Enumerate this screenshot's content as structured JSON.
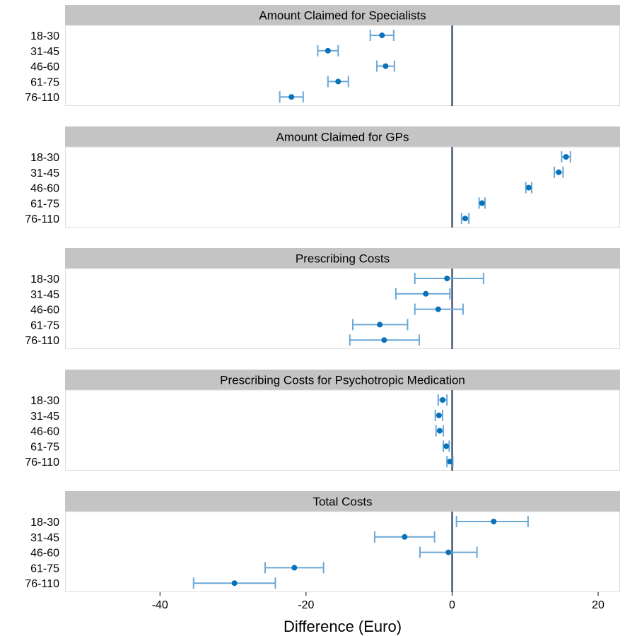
{
  "chart_data": {
    "type": "scatter",
    "subtype": "forest-plot-faceted",
    "xlabel": "Difference (Euro)",
    "xlim": [
      -53,
      23
    ],
    "xticks": [
      -40,
      -20,
      0,
      20
    ],
    "xtick_labels": [
      "-40",
      "-20",
      "0",
      "20"
    ],
    "reference_line_x": 0,
    "categories": [
      "18-30",
      "31-45",
      "46-60",
      "61-75",
      "76-110"
    ],
    "colors": {
      "point": "#0a72b8",
      "errorbar": "#6aa8d8",
      "reference_line": "#1a2f4f",
      "strip_bg": "#c4c4c4",
      "panel_border": "#dcdcdc"
    },
    "grid": false,
    "panels": [
      {
        "title": "Amount Claimed for Specialists",
        "estimates": [
          -9.6,
          -17.0,
          -9.1,
          -15.6,
          -22.0
        ],
        "lower": [
          -11.2,
          -18.4,
          -10.3,
          -17.0,
          -23.6
        ],
        "upper": [
          -8.0,
          -15.6,
          -7.9,
          -14.2,
          -20.4
        ]
      },
      {
        "title": "Amount Claimed for GPs",
        "estimates": [
          15.6,
          14.6,
          10.5,
          4.1,
          1.8
        ],
        "lower": [
          15.0,
          14.0,
          10.1,
          3.7,
          1.3
        ],
        "upper": [
          16.2,
          15.2,
          10.9,
          4.5,
          2.3
        ]
      },
      {
        "title": "Prescribing Costs",
        "estimates": [
          -0.7,
          -3.6,
          -1.9,
          -9.9,
          -9.3
        ],
        "lower": [
          -5.1,
          -7.7,
          -5.1,
          -13.6,
          -14.0
        ],
        "upper": [
          4.3,
          -0.3,
          1.5,
          -6.1,
          -4.5
        ]
      },
      {
        "title": "Prescribing Costs for Psychotropic Medication",
        "estimates": [
          -1.3,
          -1.8,
          -1.7,
          -0.8,
          -0.3
        ],
        "lower": [
          -1.9,
          -2.3,
          -2.2,
          -1.2,
          -0.7
        ],
        "upper": [
          -0.7,
          -1.3,
          -1.2,
          -0.4,
          0.1
        ]
      },
      {
        "title": "Total Costs",
        "estimates": [
          5.7,
          -6.5,
          -0.5,
          -21.6,
          -29.8
        ],
        "lower": [
          0.6,
          -10.6,
          -4.4,
          -25.6,
          -35.4
        ],
        "upper": [
          10.4,
          -2.4,
          3.4,
          -17.6,
          -24.2
        ]
      }
    ]
  }
}
